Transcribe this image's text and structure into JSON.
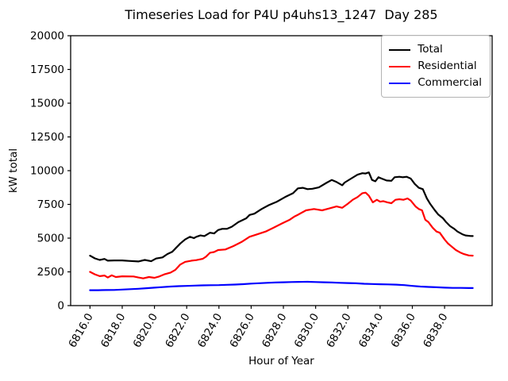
{
  "accent_colors": {
    "total": "#000000",
    "residential": "#ff0000",
    "commercial": "#0000ff",
    "spine": "#000000",
    "background": "#ffffff"
  },
  "chart_data": {
    "type": "line",
    "title": "Timeseries Load for P4U p4uhs13_1247  Day 285",
    "xlabel": "Hour of Year",
    "ylabel": "kW total",
    "xlim": [
      6814.8,
      6840.95
    ],
    "ylim": [
      0,
      20000
    ],
    "grid": false,
    "legend_position": "upper right",
    "xticks": [
      6816,
      6818,
      6820,
      6822,
      6824,
      6826,
      6828,
      6830,
      6832,
      6834,
      6836,
      6838
    ],
    "xtick_labels": [
      "6816.0",
      "6818.0",
      "6820.0",
      "6822.0",
      "6824.0",
      "6826.0",
      "6828.0",
      "6830.0",
      "6832.0",
      "6834.0",
      "6836.0",
      "6838.0"
    ],
    "xtick_rotation_deg": 60,
    "yticks": [
      0,
      2500,
      5000,
      7500,
      10000,
      12500,
      15000,
      17500,
      20000
    ],
    "ytick_labels": [
      "0",
      "2500",
      "5000",
      "7500",
      "10000",
      "12500",
      "15000",
      "17500",
      "20000"
    ],
    "series": [
      {
        "name": "Total",
        "color": "#000000",
        "points": [
          [
            6816.0,
            3700
          ],
          [
            6816.3,
            3500
          ],
          [
            6816.6,
            3380
          ],
          [
            6816.9,
            3460
          ],
          [
            6817.1,
            3330
          ],
          [
            6817.5,
            3350
          ],
          [
            6818.0,
            3350
          ],
          [
            6818.4,
            3310
          ],
          [
            6819.0,
            3270
          ],
          [
            6819.4,
            3380
          ],
          [
            6819.8,
            3290
          ],
          [
            6820.1,
            3490
          ],
          [
            6820.5,
            3570
          ],
          [
            6820.8,
            3820
          ],
          [
            6821.1,
            3980
          ],
          [
            6821.6,
            4600
          ],
          [
            6821.9,
            4900
          ],
          [
            6822.2,
            5100
          ],
          [
            6822.45,
            5000
          ],
          [
            6822.6,
            5100
          ],
          [
            6822.85,
            5200
          ],
          [
            6823.1,
            5150
          ],
          [
            6823.45,
            5400
          ],
          [
            6823.7,
            5350
          ],
          [
            6823.95,
            5600
          ],
          [
            6824.2,
            5690
          ],
          [
            6824.5,
            5690
          ],
          [
            6824.8,
            5850
          ],
          [
            6825.2,
            6180
          ],
          [
            6825.7,
            6470
          ],
          [
            6825.9,
            6720
          ],
          [
            6826.2,
            6810
          ],
          [
            6826.65,
            7160
          ],
          [
            6827.1,
            7450
          ],
          [
            6827.6,
            7700
          ],
          [
            6828.1,
            8040
          ],
          [
            6828.6,
            8330
          ],
          [
            6828.9,
            8690
          ],
          [
            6829.2,
            8730
          ],
          [
            6829.5,
            8630
          ],
          [
            6829.8,
            8660
          ],
          [
            6830.2,
            8760
          ],
          [
            6830.7,
            9120
          ],
          [
            6831.0,
            9310
          ],
          [
            6831.3,
            9160
          ],
          [
            6831.65,
            8920
          ],
          [
            6831.8,
            9120
          ],
          [
            6832.2,
            9410
          ],
          [
            6832.6,
            9700
          ],
          [
            6832.9,
            9810
          ],
          [
            6833.1,
            9790
          ],
          [
            6833.3,
            9870
          ],
          [
            6833.5,
            9310
          ],
          [
            6833.7,
            9210
          ],
          [
            6833.9,
            9510
          ],
          [
            6834.1,
            9410
          ],
          [
            6834.4,
            9270
          ],
          [
            6834.7,
            9250
          ],
          [
            6834.9,
            9510
          ],
          [
            6835.2,
            9550
          ],
          [
            6835.4,
            9510
          ],
          [
            6835.65,
            9550
          ],
          [
            6835.9,
            9410
          ],
          [
            6836.15,
            9020
          ],
          [
            6836.4,
            8730
          ],
          [
            6836.65,
            8630
          ],
          [
            6836.9,
            7940
          ],
          [
            6837.1,
            7550
          ],
          [
            6837.4,
            7060
          ],
          [
            6837.6,
            6760
          ],
          [
            6837.9,
            6470
          ],
          [
            6838.1,
            6180
          ],
          [
            6838.35,
            5880
          ],
          [
            6838.6,
            5690
          ],
          [
            6838.8,
            5490
          ],
          [
            6839.1,
            5290
          ],
          [
            6839.3,
            5200
          ],
          [
            6839.6,
            5160
          ],
          [
            6839.75,
            5150
          ]
        ]
      },
      {
        "name": "Residential",
        "color": "#ff0000",
        "points": [
          [
            6816.0,
            2500
          ],
          [
            6816.3,
            2320
          ],
          [
            6816.6,
            2180
          ],
          [
            6816.9,
            2230
          ],
          [
            6817.1,
            2080
          ],
          [
            6817.35,
            2240
          ],
          [
            6817.6,
            2120
          ],
          [
            6818.0,
            2170
          ],
          [
            6818.7,
            2160
          ],
          [
            6819.0,
            2080
          ],
          [
            6819.3,
            2020
          ],
          [
            6819.66,
            2120
          ],
          [
            6820.0,
            2060
          ],
          [
            6820.3,
            2160
          ],
          [
            6820.6,
            2310
          ],
          [
            6821.0,
            2450
          ],
          [
            6821.3,
            2650
          ],
          [
            6821.6,
            3040
          ],
          [
            6821.9,
            3240
          ],
          [
            6822.3,
            3330
          ],
          [
            6822.6,
            3370
          ],
          [
            6823.0,
            3470
          ],
          [
            6823.2,
            3630
          ],
          [
            6823.45,
            3920
          ],
          [
            6823.7,
            3970
          ],
          [
            6823.95,
            4120
          ],
          [
            6824.4,
            4160
          ],
          [
            6824.9,
            4410
          ],
          [
            6825.4,
            4710
          ],
          [
            6825.9,
            5100
          ],
          [
            6826.4,
            5290
          ],
          [
            6826.9,
            5490
          ],
          [
            6827.4,
            5780
          ],
          [
            6827.9,
            6080
          ],
          [
            6828.4,
            6370
          ],
          [
            6828.7,
            6610
          ],
          [
            6828.9,
            6730
          ],
          [
            6829.4,
            7060
          ],
          [
            6829.9,
            7160
          ],
          [
            6830.4,
            7060
          ],
          [
            6830.85,
            7200
          ],
          [
            6831.3,
            7350
          ],
          [
            6831.65,
            7250
          ],
          [
            6832.0,
            7550
          ],
          [
            6832.3,
            7840
          ],
          [
            6832.6,
            8040
          ],
          [
            6832.9,
            8330
          ],
          [
            6833.1,
            8370
          ],
          [
            6833.3,
            8140
          ],
          [
            6833.55,
            7650
          ],
          [
            6833.8,
            7840
          ],
          [
            6834.0,
            7700
          ],
          [
            6834.2,
            7740
          ],
          [
            6834.45,
            7650
          ],
          [
            6834.7,
            7590
          ],
          [
            6834.95,
            7840
          ],
          [
            6835.2,
            7880
          ],
          [
            6835.45,
            7840
          ],
          [
            6835.7,
            7940
          ],
          [
            6835.9,
            7780
          ],
          [
            6836.2,
            7350
          ],
          [
            6836.4,
            7160
          ],
          [
            6836.6,
            7060
          ],
          [
            6836.8,
            6370
          ],
          [
            6837.0,
            6180
          ],
          [
            6837.25,
            5780
          ],
          [
            6837.5,
            5490
          ],
          [
            6837.7,
            5400
          ],
          [
            6838.0,
            4900
          ],
          [
            6838.2,
            4610
          ],
          [
            6838.5,
            4310
          ],
          [
            6838.7,
            4120
          ],
          [
            6839.0,
            3920
          ],
          [
            6839.2,
            3820
          ],
          [
            6839.5,
            3720
          ],
          [
            6839.75,
            3700
          ]
        ]
      },
      {
        "name": "Commercial",
        "color": "#0000ff",
        "points": [
          [
            6816.0,
            1140
          ],
          [
            6816.5,
            1140
          ],
          [
            6817.0,
            1150
          ],
          [
            6817.5,
            1160
          ],
          [
            6818.0,
            1190
          ],
          [
            6818.5,
            1220
          ],
          [
            6819.0,
            1250
          ],
          [
            6819.5,
            1290
          ],
          [
            6820.0,
            1330
          ],
          [
            6820.5,
            1370
          ],
          [
            6821.0,
            1410
          ],
          [
            6821.5,
            1440
          ],
          [
            6822.0,
            1460
          ],
          [
            6822.5,
            1480
          ],
          [
            6823.0,
            1500
          ],
          [
            6823.5,
            1510
          ],
          [
            6824.0,
            1520
          ],
          [
            6824.5,
            1540
          ],
          [
            6825.0,
            1560
          ],
          [
            6825.5,
            1590
          ],
          [
            6826.0,
            1630
          ],
          [
            6826.5,
            1660
          ],
          [
            6827.0,
            1690
          ],
          [
            6827.5,
            1710
          ],
          [
            6828.0,
            1730
          ],
          [
            6828.5,
            1750
          ],
          [
            6829.0,
            1760
          ],
          [
            6829.5,
            1765
          ],
          [
            6830.0,
            1750
          ],
          [
            6830.5,
            1730
          ],
          [
            6831.0,
            1710
          ],
          [
            6831.5,
            1690
          ],
          [
            6832.0,
            1670
          ],
          [
            6832.5,
            1650
          ],
          [
            6833.0,
            1620
          ],
          [
            6833.5,
            1600
          ],
          [
            6834.0,
            1580
          ],
          [
            6834.5,
            1570
          ],
          [
            6835.0,
            1550
          ],
          [
            6835.5,
            1520
          ],
          [
            6836.0,
            1460
          ],
          [
            6836.5,
            1410
          ],
          [
            6837.0,
            1380
          ],
          [
            6837.5,
            1360
          ],
          [
            6838.0,
            1330
          ],
          [
            6838.5,
            1310
          ],
          [
            6839.0,
            1310
          ],
          [
            6839.5,
            1300
          ],
          [
            6839.75,
            1300
          ]
        ]
      }
    ]
  }
}
